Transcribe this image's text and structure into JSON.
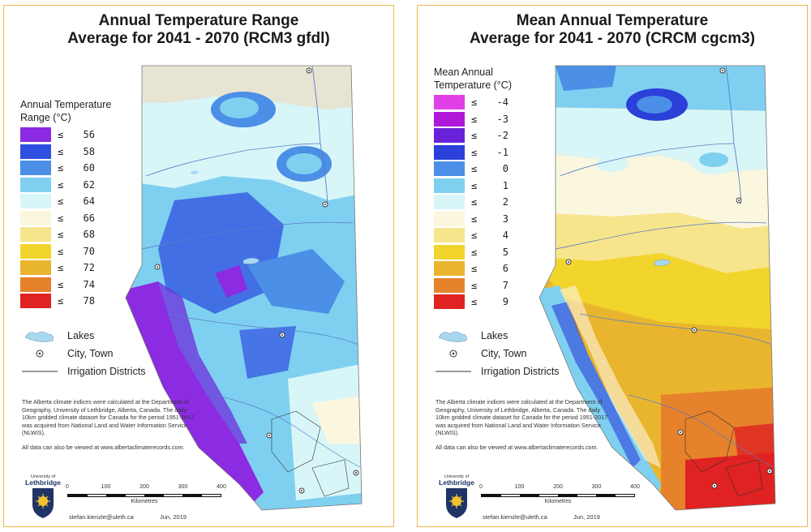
{
  "left": {
    "title_line1": "Annual Temperature Range",
    "title_line2": "Average for 2041 - 2070 (RCM3 gfdl)",
    "legend_title_line1": "Annual Temperature",
    "legend_title_line2": "Range (°C)",
    "legend": [
      {
        "op": "≤",
        "value": "56",
        "color": "#8b2be2"
      },
      {
        "op": "≤",
        "value": "58",
        "color": "#2f4fe0"
      },
      {
        "op": "≤",
        "value": "60",
        "color": "#4b8fe6"
      },
      {
        "op": "≤",
        "value": "62",
        "color": "#7fd0f0"
      },
      {
        "op": "≤",
        "value": "64",
        "color": "#d8f6f8"
      },
      {
        "op": "≤",
        "value": "66",
        "color": "#fbf7df"
      },
      {
        "op": "≤",
        "value": "68",
        "color": "#f7e58c"
      },
      {
        "op": "≤",
        "value": "70",
        "color": "#f2d52c"
      },
      {
        "op": "≤",
        "value": "72",
        "color": "#e9b52e"
      },
      {
        "op": "≤",
        "value": "74",
        "color": "#e6822b"
      },
      {
        "op": "≤",
        "value": "78",
        "color": "#e02222"
      }
    ]
  },
  "right": {
    "title_line1": "Mean Annual Temperature",
    "title_line2": "Average for 2041 - 2070 (CRCM cgcm3)",
    "legend_title_line1": "Mean Annual",
    "legend_title_line2": "Temperature (°C)",
    "legend": [
      {
        "op": "≤",
        "value": "-4",
        "color": "#e040e8"
      },
      {
        "op": "≤",
        "value": "-3",
        "color": "#b018d8"
      },
      {
        "op": "≤",
        "value": "-2",
        "color": "#6a22d8"
      },
      {
        "op": "≤",
        "value": "-1",
        "color": "#2a40d8"
      },
      {
        "op": "≤",
        "value": "0",
        "color": "#4b8fe6"
      },
      {
        "op": "≤",
        "value": "1",
        "color": "#7fd0f0"
      },
      {
        "op": "≤",
        "value": "2",
        "color": "#d8f6f8"
      },
      {
        "op": "≤",
        "value": "3",
        "color": "#fbf7df"
      },
      {
        "op": "≤",
        "value": "4",
        "color": "#f7e58c"
      },
      {
        "op": "≤",
        "value": "5",
        "color": "#f2d52c"
      },
      {
        "op": "≤",
        "value": "6",
        "color": "#e9b52e"
      },
      {
        "op": "≤",
        "value": "7",
        "color": "#e6822b"
      },
      {
        "op": "≤",
        "value": "9",
        "color": "#e02222"
      }
    ]
  },
  "common": {
    "lakes_label": "Lakes",
    "city_label": "City, Town",
    "irrigation_label": "Irrigation Districts",
    "note_p1": "The Alberta climate indices were calculated at the Department of Geography, University of Lethbridge, Alberta, Canada. The daily 10km gridded climate dataset for Canada for the period 1951-2017 was acquired from National Land and Water Information Service (NLWIS).",
    "note_p2": "All data can also be viewed at www.albertaclimaterecords.com.",
    "logo_line1": "University of",
    "logo_line2": "Lethbridge",
    "scale_ticks": [
      "0",
      "100",
      "200",
      "300",
      "400"
    ],
    "scale_unit": "Kilometres",
    "email": "stefan.kienzle@uleth.ca",
    "date": "Jun, 2019"
  },
  "colors": {
    "panel_border": "#f0b84a",
    "lake": "#a8d8f0",
    "river": "#5a7cc8",
    "hillshade_ne": "#e8e4d2"
  }
}
